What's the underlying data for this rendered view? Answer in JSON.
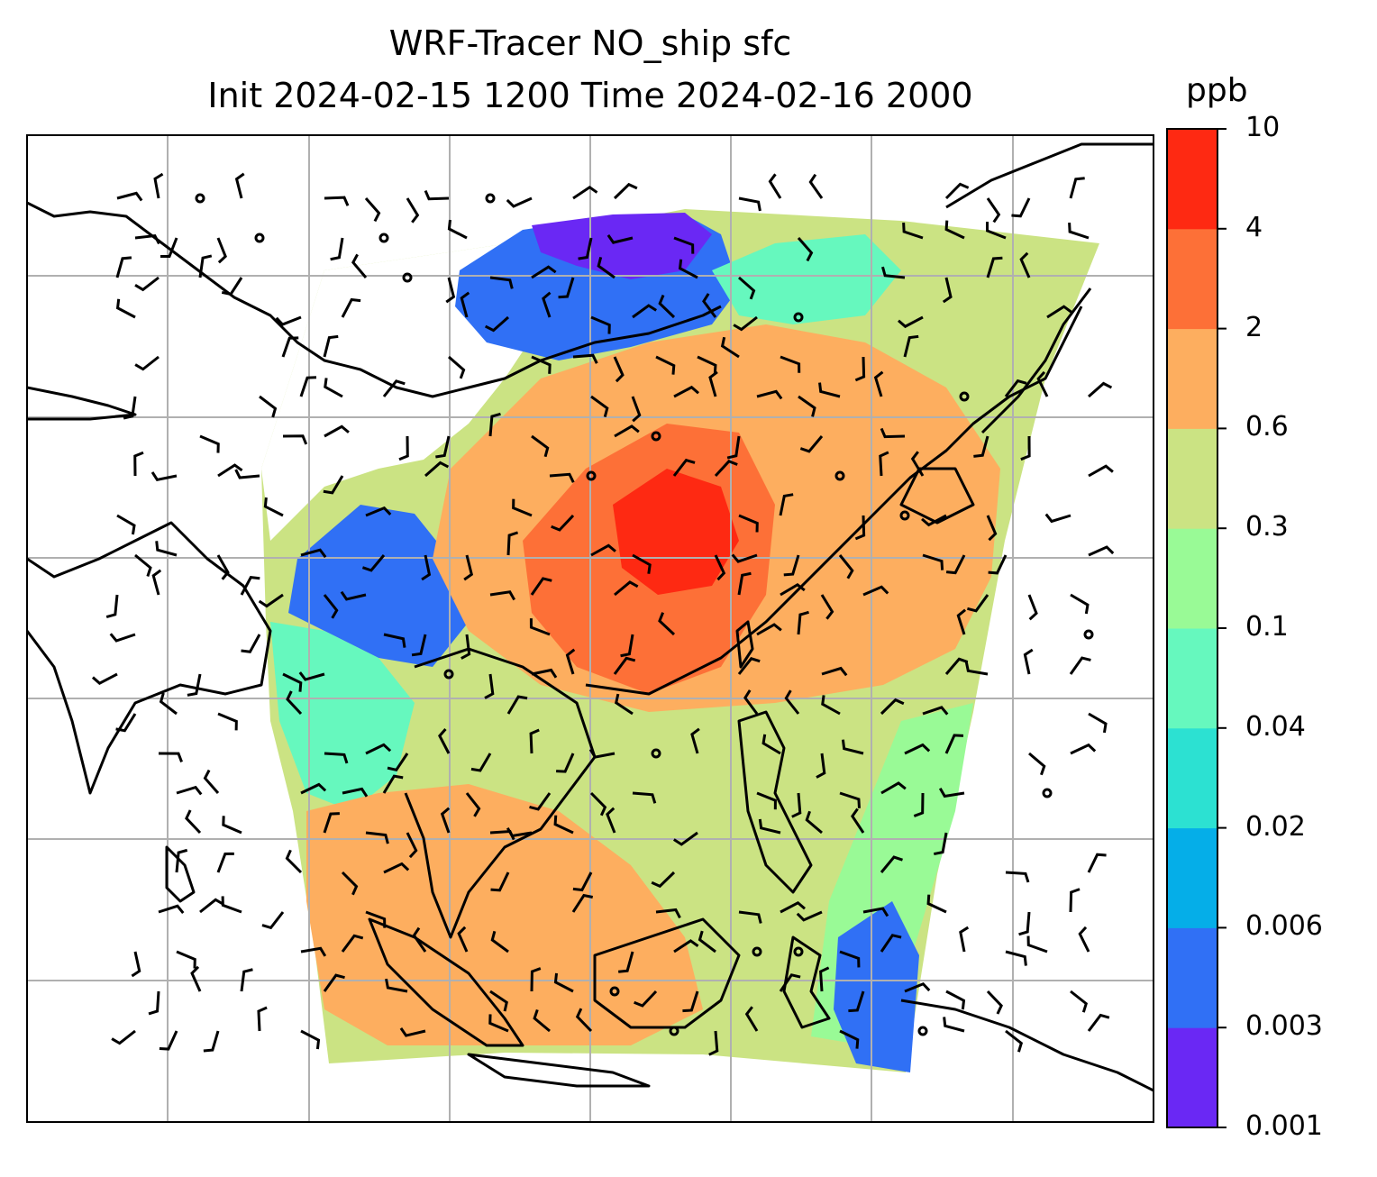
{
  "title": {
    "line1": "WRF-Tracer NO_ship sfc",
    "line2": "Init 2024-02-15 1200 Time 2024-02-16 2000"
  },
  "colorbar": {
    "unit": "ppb",
    "levels": [
      "0.001",
      "0.003",
      "0.006",
      "0.02",
      "0.04",
      "0.1",
      "0.3",
      "0.6",
      "2",
      "4",
      "10"
    ],
    "colors": [
      "#6a28f4",
      "#3070f5",
      "#05aee8",
      "#2ce1d2",
      "#66f8be",
      "#99fa96",
      "#cbe383",
      "#fdae5f",
      "#fd7037",
      "#fe2912"
    ]
  },
  "map": {
    "background": "#ffffff",
    "frame_color": "#000000",
    "gridline_color": "#b0b0b0",
    "coastline_color": "#000000",
    "field": "NO_ship surface tracer concentration",
    "overlay": "wind barbs and calm circles"
  }
}
